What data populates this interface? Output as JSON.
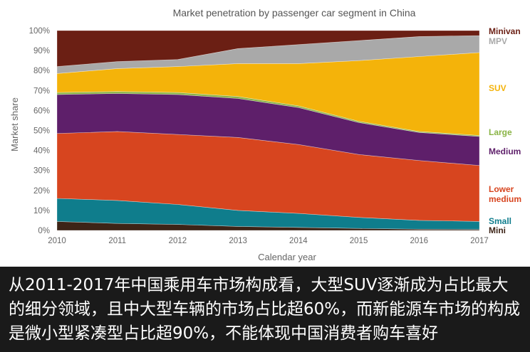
{
  "chart_data": {
    "type": "area",
    "title": "Market penetration by passenger car segment in China",
    "xlabel": "Calendar year",
    "ylabel": "Market share",
    "x": [
      "2010",
      "2011",
      "2012",
      "2013",
      "2014",
      "2015",
      "2016",
      "2017"
    ],
    "ylim": [
      0,
      100
    ],
    "yticks": [
      "0%",
      "10%",
      "20%",
      "30%",
      "40%",
      "50%",
      "60%",
      "70%",
      "80%",
      "90%",
      "100%"
    ],
    "stacked": true,
    "legend_position": "right, labels beside each band",
    "series": [
      {
        "name": "Mini",
        "color": "#3d2417",
        "values": [
          4.5,
          3.5,
          3.0,
          2.0,
          1.5,
          1.0,
          0.6,
          0.5
        ]
      },
      {
        "name": "Small",
        "color": "#0f7d8c",
        "values": [
          11.5,
          11.5,
          10.0,
          8.0,
          7.0,
          5.5,
          4.4,
          4.0
        ]
      },
      {
        "name": "Lower\nmedium",
        "color": "#d7451f",
        "values": [
          32.5,
          34.5,
          35.0,
          36.5,
          34.5,
          31.5,
          30.0,
          28.0
        ]
      },
      {
        "name": "Medium",
        "color": "#5e1f6a",
        "values": [
          19.5,
          19.0,
          20.0,
          19.5,
          18.5,
          16.0,
          14.0,
          14.5
        ]
      },
      {
        "name": "Large",
        "color": "#8ab446",
        "values": [
          1.0,
          1.0,
          1.0,
          1.0,
          0.8,
          0.6,
          0.5,
          0.5
        ]
      },
      {
        "name": "SUV",
        "color": "#f4b30a",
        "values": [
          9.5,
          11.5,
          13.0,
          16.5,
          21.2,
          30.4,
          37.5,
          41.5
        ]
      },
      {
        "name": "MPV",
        "color": "#a9a9a9",
        "values": [
          3.5,
          3.5,
          3.5,
          7.5,
          9.5,
          10.0,
          10.0,
          8.5
        ]
      },
      {
        "name": "Minivan",
        "color": "#6b1f14",
        "values": [
          18.0,
          15.5,
          14.5,
          9.0,
          7.0,
          5.0,
          3.0,
          2.5
        ]
      }
    ]
  },
  "caption": {
    "text": "从2011-2017年中国乘用车市场构成看，大型SUV逐渐成为占比最大的细分领域，且中大型车辆的市场占比超60%，而新能源车市场的构成是微小型紧凑型占比超90%，不能体现中国消费者购车喜好"
  }
}
